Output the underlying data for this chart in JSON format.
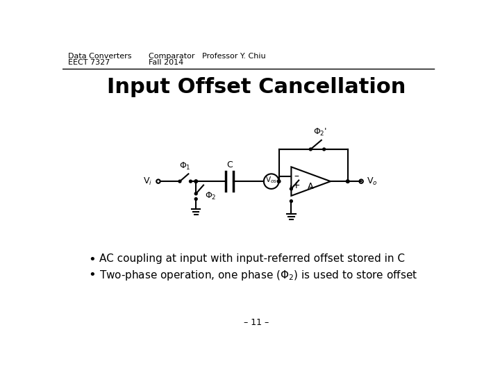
{
  "title": "Input Offset Cancellation",
  "header_left_line1": "Data Converters",
  "header_left_line2": "EECT 7327",
  "header_mid_line1": "Comparator   Professor Y. Chiu",
  "header_mid_line2": "Fall 2014",
  "bullet1": "AC coupling at input with input-referred offset stored in C",
  "bullet2": "Two-phase operation, one phase (Φ₂) is used to store offset",
  "footer": "– 11 –",
  "bg_color": "#ffffff",
  "text_color": "#000000",
  "title_fontsize": 22,
  "header_fontsize": 8,
  "bullet_fontsize": 11,
  "footer_fontsize": 9
}
